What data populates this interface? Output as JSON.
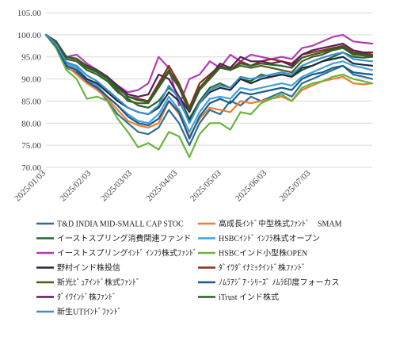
{
  "chart_data": {
    "type": "line",
    "title": "",
    "xlabel": "",
    "ylabel": "",
    "ylim": [
      70,
      105
    ],
    "yticks": [
      "70.00",
      "75.00",
      "80.00",
      "85.00",
      "90.00",
      "95.00",
      "100.00",
      "105.00"
    ],
    "xlim": [
      "2025-01-03",
      "2025-08-14"
    ],
    "xticks": [
      {
        "date": "2025-01-03",
        "label": "2025/01/03"
      },
      {
        "date": "2025-02-03",
        "label": "2025/02/03"
      },
      {
        "date": "2025-03-03",
        "label": "2025/03/03"
      },
      {
        "date": "2025-04-03",
        "label": "2025/04/03"
      },
      {
        "date": "2025-05-03",
        "label": "2025/05/03"
      },
      {
        "date": "2025-06-03",
        "label": "2025/06/03"
      },
      {
        "date": "2025-07-03",
        "label": "2025/07/03"
      }
    ],
    "grid": "horizontal",
    "legend_position": "bottom",
    "dates": [
      "2025-01-03",
      "2025-01-10",
      "2025-01-17",
      "2025-01-24",
      "2025-01-31",
      "2025-02-07",
      "2025-02-14",
      "2025-02-21",
      "2025-02-28",
      "2025-03-07",
      "2025-03-14",
      "2025-03-21",
      "2025-03-28",
      "2025-04-04",
      "2025-04-11",
      "2025-04-18",
      "2025-04-25",
      "2025-05-02",
      "2025-05-09",
      "2025-05-16",
      "2025-05-23",
      "2025-05-30",
      "2025-06-06",
      "2025-06-13",
      "2025-06-20",
      "2025-06-27",
      "2025-07-04",
      "2025-07-11",
      "2025-07-18",
      "2025-07-25",
      "2025-08-01",
      "2025-08-08",
      "2025-08-14"
    ],
    "series": [
      {
        "name": "T&D INDIA MID-SMALL CAP STOC",
        "color": "#2E6E93",
        "values": [
          100,
          97.5,
          92.5,
          91.5,
          89,
          88,
          85,
          82,
          80,
          78,
          77.5,
          79,
          83,
          80,
          75,
          80,
          83,
          82,
          85,
          84,
          86,
          85,
          86,
          87,
          86,
          89,
          90,
          91,
          92,
          93,
          91,
          90.5,
          90
        ]
      },
      {
        "name": "高成長ｲﾝﾄﾞ中型株式ﾌｧﾝﾄﾞ　SMAM",
        "color": "#ED7D31",
        "values": [
          100,
          97,
          93,
          91,
          89,
          87.5,
          85.5,
          83,
          80.5,
          79.5,
          79,
          80,
          85,
          82,
          77,
          81,
          83.5,
          83,
          82.5,
          85,
          84.5,
          85,
          85.5,
          86,
          85,
          87.5,
          88.5,
          89.5,
          90,
          90.5,
          89,
          88.8,
          89
        ]
      },
      {
        "name": "イーストスプリング消費関連ファンド",
        "color": "#1F6B31",
        "values": [
          100,
          98,
          94.5,
          94,
          92,
          91,
          89.5,
          87,
          85.5,
          84,
          83.5,
          85,
          88,
          86,
          81,
          85,
          88,
          89,
          88,
          90,
          89.5,
          91,
          90.5,
          91,
          90.5,
          92,
          93,
          94,
          95,
          96,
          95,
          94.8,
          95
        ]
      },
      {
        "name": "HSBCｲﾝﾄﾞ ｲﾝﾌﾗ株式オープン",
        "color": "#43A0D8",
        "values": [
          100,
          97.5,
          93.5,
          92.5,
          90,
          88.5,
          86,
          84,
          82,
          80.5,
          80,
          82,
          86,
          83,
          78,
          82.5,
          85.5,
          86,
          85.5,
          88,
          87.5,
          88,
          88.5,
          89,
          88.5,
          90.5,
          91.5,
          92.5,
          93.5,
          94,
          93,
          92.5,
          92
        ]
      },
      {
        "name": "イーストスプリングｲﾝﾄﾞ ｲﾝﾌﾗ株式ﾌｧﾝﾄﾞ",
        "color": "#B43BB4",
        "values": [
          100,
          98.5,
          95,
          95.5,
          93.5,
          92,
          90.5,
          88.5,
          87,
          87.5,
          89,
          95,
          92.5,
          84,
          90,
          91,
          94,
          92.5,
          95.5,
          94,
          95.5,
          95,
          94.5,
          95,
          94.5,
          97,
          97.5,
          98.5,
          99.5,
          100,
          98.5,
          98.2,
          98
        ]
      },
      {
        "name": "HSBCインド小型株OPEN",
        "color": "#6CB33F",
        "values": [
          100,
          97,
          92,
          90,
          85.5,
          86,
          85,
          81,
          78,
          74.5,
          75.5,
          74,
          78,
          77,
          72.3,
          77.5,
          80,
          80,
          78.5,
          82.5,
          82,
          84.5,
          85.5,
          86.5,
          85,
          88,
          89,
          89.5,
          90.5,
          91,
          90,
          89.5,
          89
        ]
      },
      {
        "name": "野村インド株投信",
        "color": "#1E2B3A",
        "values": [
          100,
          97.5,
          93,
          92,
          90,
          89,
          87,
          85,
          83.5,
          82.5,
          82,
          83.5,
          87,
          85,
          80.5,
          84.5,
          87,
          88,
          87.5,
          90,
          89,
          90,
          90.5,
          91,
          90.5,
          92.5,
          93,
          94,
          94.5,
          95,
          93.5,
          93.2,
          93
        ]
      },
      {
        "name": "ﾀﾞｲﾜﾀﾞｲﾅﾐｯｸｲﾝﾄﾞ株ﾌｧﾝﾄﾞ",
        "color": "#8B2E16",
        "values": [
          100,
          98.5,
          95,
          94.5,
          93,
          92,
          90.5,
          88,
          86,
          85.5,
          85,
          89,
          93,
          89,
          83.5,
          89,
          91,
          93,
          92,
          94,
          93,
          94,
          94.5,
          94,
          93.5,
          95.5,
          96,
          96.5,
          97,
          97.5,
          96,
          95.8,
          95.5
        ]
      },
      {
        "name": "新光ﾋﾟｭｱｲﾝﾄﾞ株式ﾌｧﾝﾄﾞ",
        "color": "#4D5B1F",
        "values": [
          100,
          98,
          94.5,
          94,
          92.5,
          91.5,
          90,
          87.5,
          85,
          84.5,
          84.5,
          88,
          91.5,
          88,
          82.5,
          87.5,
          90,
          92.5,
          92,
          93,
          92.5,
          93,
          92.5,
          92,
          91.5,
          94,
          95,
          95.5,
          96.5,
          97,
          95.5,
          95.3,
          95
        ]
      },
      {
        "name": "ﾉﾑﾗｱｼﾞｱ･ｼﾘｰｽﾞ ﾉﾑﾗ印度フォーカス",
        "color": "#1A5A8C",
        "values": [
          100,
          97.5,
          93,
          92,
          89.5,
          88,
          86,
          84,
          81.5,
          80,
          79.5,
          81,
          85,
          82.5,
          76.5,
          81.5,
          84.5,
          85.5,
          84.5,
          87,
          86.5,
          87,
          87.5,
          88,
          87.5,
          90,
          91,
          91.5,
          92.5,
          93,
          91.5,
          91.2,
          91
        ]
      },
      {
        "name": "ﾀﾞｲﾜｲﾝﾄﾞ株ﾌｧﾝﾄﾞ",
        "color": "#5B1A5B",
        "values": [
          100,
          98,
          95,
          94.5,
          93,
          92,
          90.5,
          88.5,
          86.5,
          86,
          86.5,
          91,
          90,
          86,
          82.5,
          88,
          90.5,
          93.5,
          92.5,
          95,
          94,
          94,
          93.5,
          94,
          93,
          95.5,
          96.5,
          97,
          97.5,
          98,
          96.5,
          96,
          96
        ]
      },
      {
        "name": "iTrust インド株式",
        "color": "#2B5F2B",
        "values": [
          100,
          98.3,
          95,
          94.6,
          92.8,
          91.8,
          90.2,
          88,
          86,
          85.2,
          84.8,
          88.5,
          92,
          88.5,
          83,
          88,
          90.5,
          92.8,
          92.2,
          93.5,
          93,
          93.5,
          93.2,
          93,
          92.5,
          94.8,
          95.5,
          96,
          96.8,
          97.3,
          95.8,
          95.6,
          95.3
        ]
      },
      {
        "name": "新生UTIｲﾝﾄﾞﾌｧﾝﾄﾞ",
        "color": "#3D8FCC",
        "values": [
          100,
          97.8,
          93.8,
          93,
          90.8,
          89.5,
          87.5,
          85.5,
          83.5,
          82.5,
          82,
          84,
          88.5,
          85.5,
          80,
          84.5,
          87.5,
          88.5,
          88,
          90.5,
          90,
          90.5,
          91,
          91.5,
          91,
          93,
          94,
          94.8,
          95.5,
          96,
          94.5,
          94.2,
          94
        ]
      }
    ]
  }
}
